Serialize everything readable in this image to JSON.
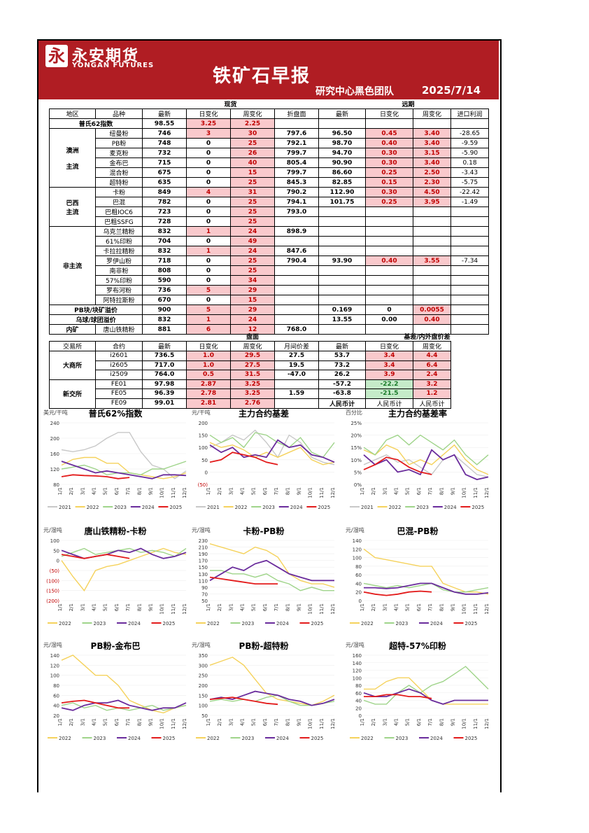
{
  "header": {
    "logo_glyph": "永",
    "brand_cn": "永安期货",
    "brand_en": "YONGAN FUTURES",
    "title": "铁矿石早报",
    "subtitle": "研究中心黑色团队",
    "date": "2025/7/14"
  },
  "spot_table": {
    "section_spot": "现货",
    "section_far": "远期",
    "headers": [
      "地区",
      "品种",
      "最新",
      "日变化",
      "周变化",
      "折盘面",
      "最新",
      "日变化",
      "周变化",
      "进口利润"
    ],
    "index_row": {
      "label": "普氏62指数",
      "latest": "98.55",
      "day": "3.25",
      "week": "2.25"
    },
    "groups": [
      {
        "region": "澳洲\n\n主流",
        "rows": [
          [
            "纽曼粉",
            "746",
            "3",
            "30",
            "797.6",
            "96.50",
            "0.45",
            "3.40",
            "-28.65"
          ],
          [
            "PB粉",
            "748",
            "0",
            "25",
            "792.1",
            "98.70",
            "0.40",
            "3.40",
            "-9.59"
          ],
          [
            "麦克粉",
            "732",
            "0",
            "26",
            "799.7",
            "94.70",
            "0.30",
            "3.15",
            "-5.90"
          ],
          [
            "金布巴",
            "715",
            "0",
            "40",
            "805.4",
            "90.90",
            "0.30",
            "3.40",
            "0.18"
          ],
          [
            "混合粉",
            "675",
            "0",
            "15",
            "799.7",
            "86.60",
            "0.25",
            "2.50",
            "-3.43"
          ],
          [
            "超特粉",
            "635",
            "0",
            "25",
            "845.3",
            "82.85",
            "0.15",
            "2.30",
            "-5.75"
          ]
        ]
      },
      {
        "region": "巴西\n主流",
        "rows": [
          [
            "卡粉",
            "849",
            "4",
            "31",
            "790.2",
            "112.90",
            "0.30",
            "4.50",
            "-22.42"
          ],
          [
            "巴混",
            "782",
            "0",
            "25",
            "794.1",
            "101.75",
            "0.25",
            "3.95",
            "-1.49"
          ],
          [
            "巴粗IOC6",
            "723",
            "0",
            "25",
            "793.0",
            "",
            "",
            "",
            ""
          ],
          [
            "巴粗SSFG",
            "728",
            "0",
            "25",
            "",
            "",
            "",
            "",
            ""
          ]
        ]
      },
      {
        "region": "非主流",
        "rows": [
          [
            "乌克兰精粉",
            "832",
            "1",
            "24",
            "898.9",
            "",
            "",
            "",
            ""
          ],
          [
            "61%印粉",
            "704",
            "0",
            "49",
            "",
            "",
            "",
            "",
            ""
          ],
          [
            "卡拉拉精粉",
            "832",
            "1",
            "24",
            "847.6",
            "",
            "",
            "",
            ""
          ],
          [
            "罗伊山粉",
            "718",
            "0",
            "25",
            "790.4",
            "93.90",
            "0.40",
            "3.55",
            "-7.34"
          ],
          [
            "南非粉",
            "808",
            "0",
            "25",
            "",
            "",
            "",
            "",
            ""
          ],
          [
            "57%印粉",
            "590",
            "0",
            "34",
            "",
            "",
            "",
            "",
            ""
          ],
          [
            "罗布河粉",
            "736",
            "5",
            "29",
            "",
            "",
            "",
            "",
            ""
          ],
          [
            "阿特拉斯粉",
            "670",
            "0",
            "15",
            "",
            "",
            "",
            "",
            ""
          ]
        ]
      }
    ],
    "premium_rows": [
      [
        "PB块/块矿溢价",
        "900",
        "5",
        "29",
        "",
        "0.169",
        "0",
        "0.0055",
        ""
      ],
      [
        "乌球/球团溢价",
        "832",
        "1",
        "24",
        "",
        "13.55",
        "0.00",
        "0.40",
        ""
      ]
    ],
    "domestic_row": [
      "内矿",
      "唐山铁精粉",
      "881",
      "6",
      "12",
      "768.0"
    ]
  },
  "futures_table": {
    "section_disk": "盘面",
    "section_basis": "基差/内外盘价差",
    "headers": [
      "交易所",
      "合约",
      "最新",
      "日变化",
      "周变化",
      "月间价差",
      "最新",
      "日变化",
      "周变化"
    ],
    "dalian": {
      "exchange": "大商所",
      "rows": [
        [
          "i2601",
          "736.5",
          "1.0",
          "29.5",
          "27.5",
          "53.7",
          "3.4",
          "4.4"
        ],
        [
          "i2605",
          "717.0",
          "1.0",
          "27.5",
          "19.5",
          "73.2",
          "3.4",
          "6.4"
        ],
        [
          "i2509",
          "764.0",
          "0.5",
          "31.5",
          "-47.0",
          "26.2",
          "3.9",
          "2.4"
        ]
      ]
    },
    "sgx": {
      "exchange": "新交所",
      "rows": [
        [
          "FE01",
          "97.98",
          "2.87",
          "3.25",
          "",
          "-57.2",
          "-22.2",
          "3.2"
        ],
        [
          "FE05",
          "96.39",
          "2.78",
          "3.25",
          "1.59",
          "-63.8",
          "-21.5",
          "1.2"
        ],
        [
          "FE09",
          "99.01",
          "2.81",
          "2.76",
          "",
          "人民币计",
          "人民币计",
          "人民币计"
        ]
      ]
    }
  },
  "colors": {
    "y2021": "#c8c8c8",
    "y2022": "#f5d25c",
    "y2023": "#9fd48a",
    "y2024": "#6a2c9c",
    "y2025": "#e31b1b"
  },
  "months": [
    "1/1",
    "2/1",
    "3/1",
    "4/1",
    "5/1",
    "6/1",
    "7/1",
    "8/1",
    "9/1",
    "10/1",
    "11/1",
    "12/1"
  ],
  "chart_data": [
    {
      "type": "line",
      "title": "普氏62%指数",
      "unit": "美元/干吨",
      "ylim": [
        80,
        240
      ],
      "yticks": [
        "240",
        "200",
        "160",
        "120",
        "80"
      ],
      "series": [
        {
          "name": "2021",
          "values": [
            170,
            165,
            170,
            180,
            200,
            215,
            215,
            165,
            130,
            120,
            95,
            115
          ]
        },
        {
          "name": "2022",
          "values": [
            130,
            145,
            150,
            150,
            135,
            135,
            110,
            105,
            100,
            95,
            100,
            110
          ]
        },
        {
          "name": "2023",
          "values": [
            120,
            125,
            130,
            120,
            105,
            110,
            110,
            105,
            120,
            120,
            130,
            140
          ]
        },
        {
          "name": "2024",
          "values": [
            140,
            130,
            120,
            110,
            115,
            110,
            105,
            100,
            95,
            105,
            105,
            103
          ]
        },
        {
          "name": "2025",
          "values": [
            100,
            105,
            103,
            102,
            100,
            95,
            98
          ]
        }
      ]
    },
    {
      "type": "line",
      "title": "主力合约基差",
      "unit": "元/干吨",
      "ylim": [
        -50,
        200
      ],
      "yticks": [
        "200",
        "150",
        "100",
        "50",
        "0",
        "(50)"
      ],
      "series": [
        {
          "name": "2021",
          "values": [
            100,
            120,
            150,
            130,
            170,
            120,
            60,
            150,
            120,
            60,
            40,
            30
          ]
        },
        {
          "name": "2022",
          "values": [
            120,
            100,
            110,
            90,
            60,
            80,
            60,
            80,
            100,
            50,
            30,
            40
          ]
        },
        {
          "name": "2023",
          "values": [
            150,
            120,
            140,
            100,
            160,
            150,
            120,
            100,
            140,
            80,
            60,
            120
          ]
        },
        {
          "name": "2024",
          "values": [
            110,
            80,
            100,
            60,
            70,
            60,
            130,
            100,
            110,
            70,
            60,
            40
          ]
        },
        {
          "name": "2025",
          "values": [
            40,
            50,
            80,
            70,
            60,
            40,
            30
          ]
        }
      ]
    },
    {
      "type": "line",
      "title": "主力合约基差率",
      "unit": "百分比",
      "ylim": [
        0,
        25
      ],
      "yticks": [
        "25%",
        "20%",
        "15%",
        "10%",
        "5%",
        "0%"
      ],
      "series": [
        {
          "name": "2021",
          "values": [
            8,
            10,
            12,
            9,
            10,
            7,
            4,
            10,
            12,
            8,
            4,
            3
          ]
        },
        {
          "name": "2022",
          "values": [
            14,
            12,
            16,
            14,
            8,
            10,
            8,
            12,
            16,
            10,
            6,
            4
          ]
        },
        {
          "name": "2023",
          "values": [
            15,
            12,
            18,
            20,
            16,
            20,
            17,
            14,
            18,
            12,
            8,
            12
          ]
        },
        {
          "name": "2024",
          "values": [
            12,
            8,
            10,
            5,
            6,
            4,
            14,
            10,
            12,
            4,
            2,
            3
          ]
        },
        {
          "name": "2025",
          "values": [
            6,
            8,
            11,
            10,
            7,
            5,
            4
          ]
        }
      ]
    },
    {
      "type": "line",
      "title": "唐山铁精粉-卡粉",
      "unit": "元/湿吨",
      "ylim": [
        -200,
        100
      ],
      "yticks": [
        "100",
        "50",
        "0",
        "(50)",
        "(100)",
        "(150)",
        "(200)"
      ],
      "series": [
        {
          "name": "2022",
          "values": [
            0,
            -80,
            -150,
            -50,
            -30,
            -20,
            0,
            20,
            40,
            60,
            40,
            30
          ]
        },
        {
          "name": "2023",
          "values": [
            20,
            40,
            60,
            30,
            40,
            50,
            60,
            40,
            50,
            40,
            20,
            60
          ]
        },
        {
          "name": "2024",
          "values": [
            50,
            30,
            10,
            20,
            30,
            50,
            40,
            60,
            30,
            10,
            20,
            40
          ]
        },
        {
          "name": "2025",
          "values": [
            30,
            20,
            10,
            20,
            30,
            20,
            10
          ]
        }
      ]
    },
    {
      "type": "line",
      "title": "卡粉-PB粉",
      "unit": "元/湿吨",
      "ylim": [
        50,
        230
      ],
      "yticks": [
        "230",
        "210",
        "190",
        "170",
        "150",
        "130",
        "110",
        "90",
        "70",
        "50"
      ],
      "series": [
        {
          "name": "2022",
          "values": [
            220,
            210,
            200,
            190,
            210,
            200,
            180,
            130,
            110,
            100,
            100,
            90
          ]
        },
        {
          "name": "2023",
          "values": [
            140,
            140,
            130,
            130,
            120,
            130,
            110,
            100,
            80,
            90,
            80,
            80
          ]
        },
        {
          "name": "2024",
          "values": [
            110,
            130,
            150,
            140,
            160,
            170,
            150,
            130,
            120,
            110,
            110,
            110
          ]
        },
        {
          "name": "2025",
          "values": [
            120,
            115,
            110,
            105,
            100,
            100,
            100
          ]
        }
      ]
    },
    {
      "type": "line",
      "title": "巴混-PB粉",
      "unit": "元/湿吨",
      "ylim": [
        0,
        140
      ],
      "yticks": [
        "140",
        "120",
        "100",
        "80",
        "60",
        "40",
        "20",
        "0"
      ],
      "series": [
        {
          "name": "2022",
          "values": [
            120,
            100,
            95,
            90,
            85,
            80,
            80,
            40,
            30,
            20,
            20,
            15
          ]
        },
        {
          "name": "2023",
          "values": [
            40,
            35,
            30,
            35,
            30,
            35,
            40,
            25,
            20,
            20,
            25,
            30
          ]
        },
        {
          "name": "2024",
          "values": [
            30,
            30,
            28,
            30,
            35,
            40,
            40,
            30,
            20,
            15,
            15,
            18
          ]
        },
        {
          "name": "2025",
          "values": [
            20,
            15,
            12,
            15,
            20,
            22,
            20
          ]
        }
      ]
    },
    {
      "type": "line",
      "title": "PB粉-金布巴",
      "unit": "元/湿吨",
      "ylim": [
        20,
        140
      ],
      "yticks": [
        "140",
        "120",
        "100",
        "80",
        "60",
        "40",
        "20"
      ],
      "series": [
        {
          "name": "2022",
          "values": [
            130,
            140,
            120,
            100,
            100,
            80,
            50,
            40,
            30,
            25,
            35,
            40
          ]
        },
        {
          "name": "2023",
          "values": [
            40,
            45,
            35,
            40,
            30,
            35,
            30,
            35,
            40,
            30,
            35,
            40
          ]
        },
        {
          "name": "2024",
          "values": [
            35,
            30,
            40,
            45,
            45,
            50,
            40,
            35,
            30,
            35,
            35,
            45
          ]
        },
        {
          "name": "2025",
          "values": [
            45,
            48,
            50,
            45,
            40,
            35,
            35
          ]
        }
      ]
    },
    {
      "type": "line",
      "title": "PB粉-超特粉",
      "unit": "元/湿吨",
      "ylim": [
        50,
        350
      ],
      "yticks": [
        "350",
        "300",
        "250",
        "200",
        "150",
        "100",
        "50"
      ],
      "series": [
        {
          "name": "2022",
          "values": [
            300,
            320,
            340,
            300,
            230,
            160,
            130,
            120,
            110,
            100,
            120,
            150
          ]
        },
        {
          "name": "2023",
          "values": [
            120,
            130,
            120,
            130,
            120,
            140,
            150,
            120,
            100,
            100,
            110,
            120
          ]
        },
        {
          "name": "2024",
          "values": [
            130,
            140,
            130,
            150,
            170,
            160,
            150,
            130,
            120,
            100,
            110,
            130
          ]
        },
        {
          "name": "2025",
          "values": [
            130,
            135,
            140,
            130,
            120,
            110,
            105
          ]
        }
      ]
    },
    {
      "type": "line",
      "title": "超特-57%印粉",
      "unit": "元/湿吨",
      "ylim": [
        0,
        160
      ],
      "yticks": [
        "160",
        "140",
        "120",
        "100",
        "80",
        "60",
        "40",
        "20",
        "0"
      ],
      "series": [
        {
          "name": "2022",
          "values": [
            70,
            70,
            90,
            100,
            100,
            70,
            40,
            30,
            30,
            30,
            30,
            30
          ]
        },
        {
          "name": "2023",
          "values": [
            40,
            30,
            30,
            60,
            80,
            60,
            80,
            90,
            110,
            130,
            100,
            70
          ]
        },
        {
          "name": "2024",
          "values": [
            60,
            50,
            50,
            60,
            70,
            60,
            40,
            30,
            40,
            40,
            40,
            40
          ]
        },
        {
          "name": "2025",
          "values": [
            50,
            50,
            55,
            55,
            50,
            50,
            45
          ]
        }
      ]
    }
  ]
}
